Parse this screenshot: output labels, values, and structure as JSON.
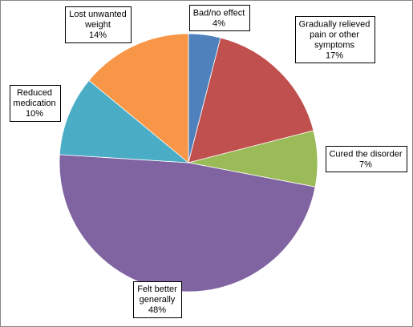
{
  "chart_data": {
    "type": "pie",
    "title": "",
    "start_angle_deg": 90,
    "direction": "clockwise",
    "slices": [
      {
        "label_lines": [
          "Bad/no effect",
          "4%"
        ],
        "value": 4,
        "color": "#4F81BD"
      },
      {
        "label_lines": [
          "Gradually relieved",
          "pain or other",
          "symptoms",
          "17%"
        ],
        "value": 17,
        "color": "#C0504D"
      },
      {
        "label_lines": [
          "Cured the disorder",
          "7%"
        ],
        "value": 7,
        "color": "#9BBB59"
      },
      {
        "label_lines": [
          "Felt better",
          "generally",
          "48%"
        ],
        "value": 48,
        "color": "#8064A2"
      },
      {
        "label_lines": [
          "Reduced",
          "medication",
          "10%"
        ],
        "value": 10,
        "color": "#4BACC6"
      },
      {
        "label_lines": [
          "Lost unwanted",
          "weight",
          "14%"
        ],
        "value": 14,
        "color": "#F79646"
      }
    ],
    "legend": "none"
  }
}
